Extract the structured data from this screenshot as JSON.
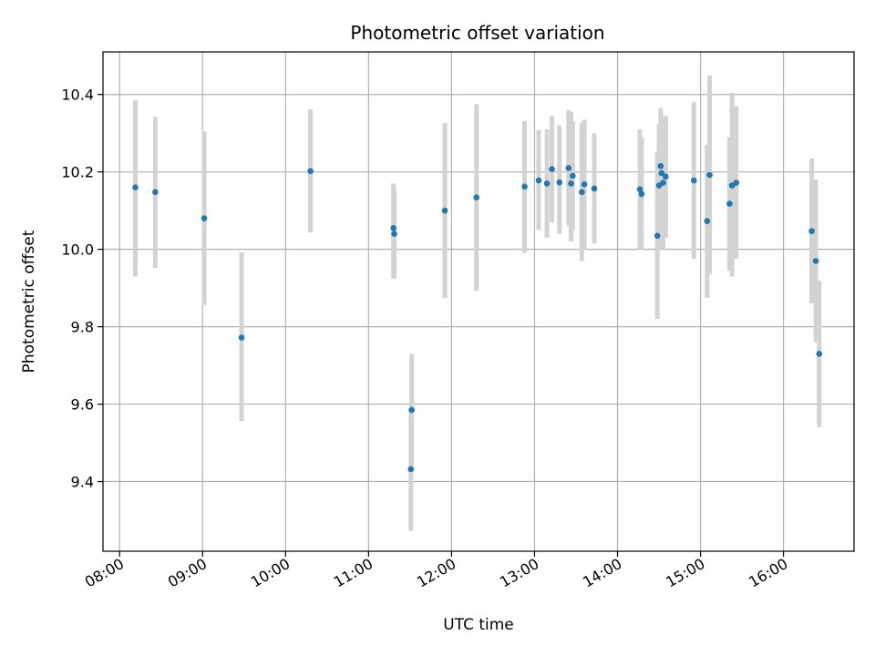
{
  "chart_data": {
    "type": "scatter",
    "title": "Photometric offset variation",
    "xlabel": "UTC time",
    "ylabel": "Photometric offset",
    "x_unit": "hours UTC",
    "xlim": [
      7.8,
      16.85
    ],
    "ylim": [
      9.22,
      10.51
    ],
    "grid": true,
    "x_ticks": [
      {
        "value": 8,
        "label": "08:00"
      },
      {
        "value": 9,
        "label": "09:00"
      },
      {
        "value": 10,
        "label": "10:00"
      },
      {
        "value": 11,
        "label": "11:00"
      },
      {
        "value": 12,
        "label": "12:00"
      },
      {
        "value": 13,
        "label": "13:00"
      },
      {
        "value": 14,
        "label": "14:00"
      },
      {
        "value": 15,
        "label": "15:00"
      },
      {
        "value": 16,
        "label": "16:00"
      }
    ],
    "y_ticks": [
      {
        "value": 9.4,
        "label": "9.4"
      },
      {
        "value": 9.6,
        "label": "9.6"
      },
      {
        "value": 9.8,
        "label": "9.8"
      },
      {
        "value": 10.0,
        "label": "10.0"
      },
      {
        "value": 10.2,
        "label": "10.2"
      },
      {
        "value": 10.4,
        "label": "10.4"
      }
    ],
    "point_color": "#1f77b4",
    "errorbar_color": "#d3d3d3",
    "points": [
      {
        "x": 8.19,
        "y": 10.16,
        "lo": 9.93,
        "hi": 10.385
      },
      {
        "x": 8.43,
        "y": 10.148,
        "lo": 9.952,
        "hi": 10.343
      },
      {
        "x": 9.02,
        "y": 10.08,
        "lo": 9.855,
        "hi": 10.305
      },
      {
        "x": 9.47,
        "y": 9.772,
        "lo": 9.556,
        "hi": 9.992
      },
      {
        "x": 10.3,
        "y": 10.202,
        "lo": 10.043,
        "hi": 10.362
      },
      {
        "x": 11.3,
        "y": 10.055,
        "lo": 9.924,
        "hi": 10.17
      },
      {
        "x": 11.31,
        "y": 10.04,
        "lo": 9.926,
        "hi": 10.155
      },
      {
        "x": 11.52,
        "y": 9.585,
        "lo": 9.44,
        "hi": 9.73
      },
      {
        "x": 11.51,
        "y": 9.432,
        "lo": 9.272,
        "hi": 9.59
      },
      {
        "x": 11.92,
        "y": 10.1,
        "lo": 9.874,
        "hi": 10.326
      },
      {
        "x": 12.3,
        "y": 10.134,
        "lo": 9.892,
        "hi": 10.375
      },
      {
        "x": 12.88,
        "y": 10.162,
        "lo": 9.991,
        "hi": 10.332
      },
      {
        "x": 13.05,
        "y": 10.178,
        "lo": 10.05,
        "hi": 10.308
      },
      {
        "x": 13.15,
        "y": 10.17,
        "lo": 10.03,
        "hi": 10.31
      },
      {
        "x": 13.21,
        "y": 10.207,
        "lo": 10.07,
        "hi": 10.345
      },
      {
        "x": 13.3,
        "y": 10.173,
        "lo": 10.04,
        "hi": 10.32
      },
      {
        "x": 13.41,
        "y": 10.21,
        "lo": 10.06,
        "hi": 10.36
      },
      {
        "x": 13.44,
        "y": 10.17,
        "lo": 10.02,
        "hi": 10.355
      },
      {
        "x": 13.46,
        "y": 10.19,
        "lo": 10.05,
        "hi": 10.33
      },
      {
        "x": 13.57,
        "y": 10.148,
        "lo": 9.97,
        "hi": 10.326
      },
      {
        "x": 13.6,
        "y": 10.168,
        "lo": 10.0,
        "hi": 10.335
      },
      {
        "x": 13.72,
        "y": 10.157,
        "lo": 10.015,
        "hi": 10.3
      },
      {
        "x": 14.27,
        "y": 10.155,
        "lo": 10.0,
        "hi": 10.31
      },
      {
        "x": 14.29,
        "y": 10.143,
        "lo": 10.0,
        "hi": 10.29
      },
      {
        "x": 14.48,
        "y": 10.035,
        "lo": 9.82,
        "hi": 10.25
      },
      {
        "x": 14.5,
        "y": 10.165,
        "lo": 10.0,
        "hi": 10.325
      },
      {
        "x": 14.52,
        "y": 10.215,
        "lo": 10.065,
        "hi": 10.365
      },
      {
        "x": 14.53,
        "y": 10.197,
        "lo": 10.05,
        "hi": 10.345
      },
      {
        "x": 14.55,
        "y": 10.172,
        "lo": 10.0,
        "hi": 10.345
      },
      {
        "x": 14.58,
        "y": 10.188,
        "lo": 10.03,
        "hi": 10.345
      },
      {
        "x": 14.92,
        "y": 10.178,
        "lo": 9.975,
        "hi": 10.38
      },
      {
        "x": 15.08,
        "y": 10.073,
        "lo": 9.875,
        "hi": 10.27
      },
      {
        "x": 15.11,
        "y": 10.192,
        "lo": 9.935,
        "hi": 10.45
      },
      {
        "x": 15.35,
        "y": 10.118,
        "lo": 9.945,
        "hi": 10.29
      },
      {
        "x": 15.38,
        "y": 10.165,
        "lo": 9.93,
        "hi": 10.405
      },
      {
        "x": 15.43,
        "y": 10.172,
        "lo": 9.975,
        "hi": 10.37
      },
      {
        "x": 16.34,
        "y": 10.047,
        "lo": 9.86,
        "hi": 10.235
      },
      {
        "x": 16.39,
        "y": 9.97,
        "lo": 9.76,
        "hi": 10.18
      },
      {
        "x": 16.43,
        "y": 9.73,
        "lo": 9.54,
        "hi": 9.92
      }
    ]
  }
}
